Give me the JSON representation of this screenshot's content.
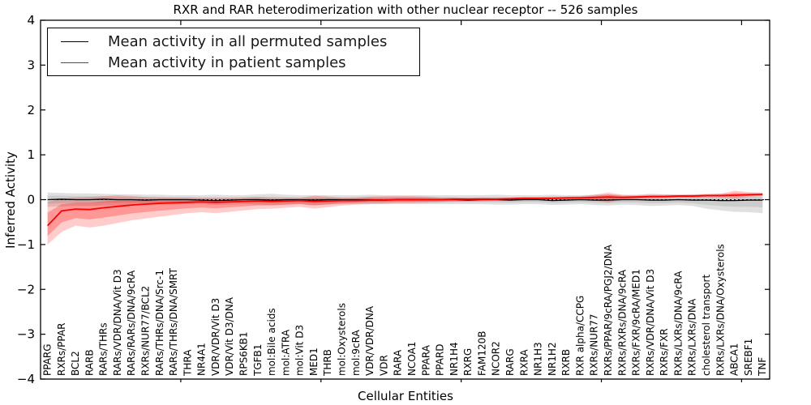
{
  "chart_data": {
    "type": "line",
    "title": "RXR and RAR heterodimerization with other nuclear receptor -- 526 samples",
    "xlabel": "Cellular Entities",
    "ylabel": "Inferred Activity",
    "ylim": [
      -4,
      4
    ],
    "ytick_labels": [
      "4",
      "3",
      "2",
      "1",
      "0",
      "−1",
      "−2",
      "−3",
      "−4"
    ],
    "grid": false,
    "zero_reference_line": true,
    "legend": {
      "position": "upper left",
      "entries": [
        {
          "label": "Mean activity in all permuted samples",
          "color": "#000000"
        },
        {
          "label": "Mean activity in patient samples",
          "color": "#ff0000"
        }
      ]
    },
    "categories": [
      "PPARG",
      "RXRs/PPAR",
      "BCL2",
      "RARB",
      "RARs/THRs",
      "RARs/VDR/DNA/Vit D3",
      "RARs/RARs/DNA/9cRA",
      "RXRs/NUR77/BCL2",
      "RARs/THRs/DNA/Src-1",
      "RARs/THRs/DNA/SMRT",
      "THRA",
      "NR4A1",
      "VDR/VDR/Vit D3",
      "VDR/Vit D3/DNA",
      "RPS6KB1",
      "TGFB1",
      "mol:Bile acids",
      "mol:ATRA",
      "mol:Vit D3",
      "MED1",
      "THRB",
      "mol:Oxysterols",
      "mol:9cRA",
      "VDR/VDR/DNA",
      "VDR",
      "RARA",
      "NCOA1",
      "PPARA",
      "PPARD",
      "NR1H4",
      "RXRG",
      "FAM120B",
      "NCOR2",
      "RARG",
      "RXRA",
      "NR1H3",
      "NR1H2",
      "RXRB",
      "RXR alpha/CCPG",
      "RXRs/NUR77",
      "RXRs/PPAR/9cRA/PGJ2/DNA",
      "RXRs/RXRs/DNA/9cRA",
      "RXRs/FXR/9cRA/MED1",
      "RXRs/VDR/DNA/Vit D3",
      "RXRs/FXR",
      "RXRs/LXRs/DNA/9cRA",
      "RXRs/LXRs/DNA",
      "cholesterol transport",
      "RXRs/LXRs/DNA/Oxysterols",
      "ABCA1",
      "SREBF1",
      "TNF"
    ],
    "series": [
      {
        "name": "Mean activity in all permuted samples",
        "color": "#000000",
        "band_fill": "#999999",
        "values": [
          0.0,
          0.01,
          0.0,
          0.0,
          0.01,
          0.0,
          0.0,
          -0.01,
          0.0,
          0.0,
          0.0,
          -0.01,
          -0.02,
          -0.01,
          0.0,
          0.0,
          -0.01,
          0.0,
          0.0,
          -0.01,
          0.0,
          0.0,
          0.0,
          0.0,
          -0.01,
          0.0,
          0.0,
          0.0,
          0.0,
          0.0,
          -0.01,
          0.0,
          0.0,
          -0.01,
          0.0,
          0.0,
          -0.02,
          -0.01,
          0.0,
          -0.01,
          -0.01,
          0.0,
          0.0,
          -0.01,
          -0.01,
          0.0,
          -0.01,
          -0.01,
          -0.02,
          -0.02,
          -0.01,
          -0.01
        ],
        "band_upper": [
          0.16,
          0.15,
          0.14,
          0.14,
          0.13,
          0.12,
          0.12,
          0.11,
          0.11,
          0.1,
          0.1,
          0.1,
          0.11,
          0.1,
          0.1,
          0.12,
          0.13,
          0.11,
          0.1,
          0.1,
          0.1,
          0.1,
          0.1,
          0.11,
          0.1,
          0.1,
          0.1,
          0.1,
          0.1,
          0.1,
          0.1,
          0.1,
          0.11,
          0.1,
          0.1,
          0.1,
          0.11,
          0.1,
          0.1,
          0.11,
          0.12,
          0.1,
          0.11,
          0.13,
          0.12,
          0.1,
          0.11,
          0.12,
          0.14,
          0.12,
          0.13,
          0.12
        ],
        "band_lower": [
          -0.16,
          -0.15,
          -0.14,
          -0.14,
          -0.13,
          -0.13,
          -0.12,
          -0.12,
          -0.11,
          -0.11,
          -0.1,
          -0.1,
          -0.12,
          -0.11,
          -0.1,
          -0.11,
          -0.12,
          -0.11,
          -0.1,
          -0.12,
          -0.11,
          -0.1,
          -0.1,
          -0.1,
          -0.1,
          -0.1,
          -0.1,
          -0.1,
          -0.1,
          -0.1,
          -0.1,
          -0.1,
          -0.11,
          -0.11,
          -0.1,
          -0.1,
          -0.12,
          -0.11,
          -0.1,
          -0.12,
          -0.13,
          -0.11,
          -0.12,
          -0.14,
          -0.13,
          -0.12,
          -0.14,
          -0.2,
          -0.24,
          -0.27,
          -0.28,
          -0.3
        ]
      },
      {
        "name": "Mean activity in patient samples",
        "color": "#ff0000",
        "band_fill": "#ff0000",
        "values": [
          -0.58,
          -0.25,
          -0.21,
          -0.22,
          -0.18,
          -0.15,
          -0.12,
          -0.1,
          -0.08,
          -0.07,
          -0.06,
          -0.05,
          -0.06,
          -0.05,
          -0.04,
          -0.03,
          -0.04,
          -0.03,
          -0.02,
          -0.04,
          -0.03,
          -0.02,
          -0.02,
          -0.01,
          -0.01,
          0.0,
          0.0,
          0.0,
          0.0,
          0.01,
          0.01,
          0.01,
          0.01,
          0.02,
          0.03,
          0.03,
          0.03,
          0.04,
          0.04,
          0.05,
          0.06,
          0.05,
          0.06,
          0.07,
          0.07,
          0.08,
          0.08,
          0.09,
          0.09,
          0.1,
          0.11,
          0.12
        ],
        "band_upper": [
          -0.05,
          0.02,
          0.05,
          0.06,
          0.08,
          0.1,
          0.08,
          0.06,
          0.05,
          0.05,
          0.05,
          0.04,
          0.04,
          0.04,
          0.05,
          0.06,
          0.04,
          0.04,
          0.04,
          0.09,
          0.07,
          0.04,
          0.05,
          0.07,
          0.08,
          0.08,
          0.08,
          0.07,
          0.05,
          0.05,
          0.04,
          0.05,
          0.04,
          0.05,
          0.06,
          0.06,
          0.07,
          0.07,
          0.08,
          0.11,
          0.16,
          0.11,
          0.1,
          0.11,
          0.11,
          0.12,
          0.12,
          0.13,
          0.13,
          0.2,
          0.17,
          0.16
        ],
        "band_lower": [
          -1.0,
          -0.72,
          -0.58,
          -0.62,
          -0.58,
          -0.52,
          -0.46,
          -0.42,
          -0.38,
          -0.34,
          -0.3,
          -0.28,
          -0.3,
          -0.27,
          -0.24,
          -0.21,
          -0.2,
          -0.18,
          -0.16,
          -0.2,
          -0.17,
          -0.13,
          -0.11,
          -0.1,
          -0.09,
          -0.08,
          -0.08,
          -0.07,
          -0.06,
          -0.05,
          -0.04,
          -0.04,
          -0.03,
          -0.02,
          -0.01,
          -0.01,
          -0.01,
          0.0,
          0.0,
          -0.02,
          -0.06,
          0.0,
          0.01,
          0.02,
          0.03,
          0.04,
          0.04,
          0.05,
          0.05,
          0.03,
          0.06,
          0.08
        ]
      }
    ]
  }
}
